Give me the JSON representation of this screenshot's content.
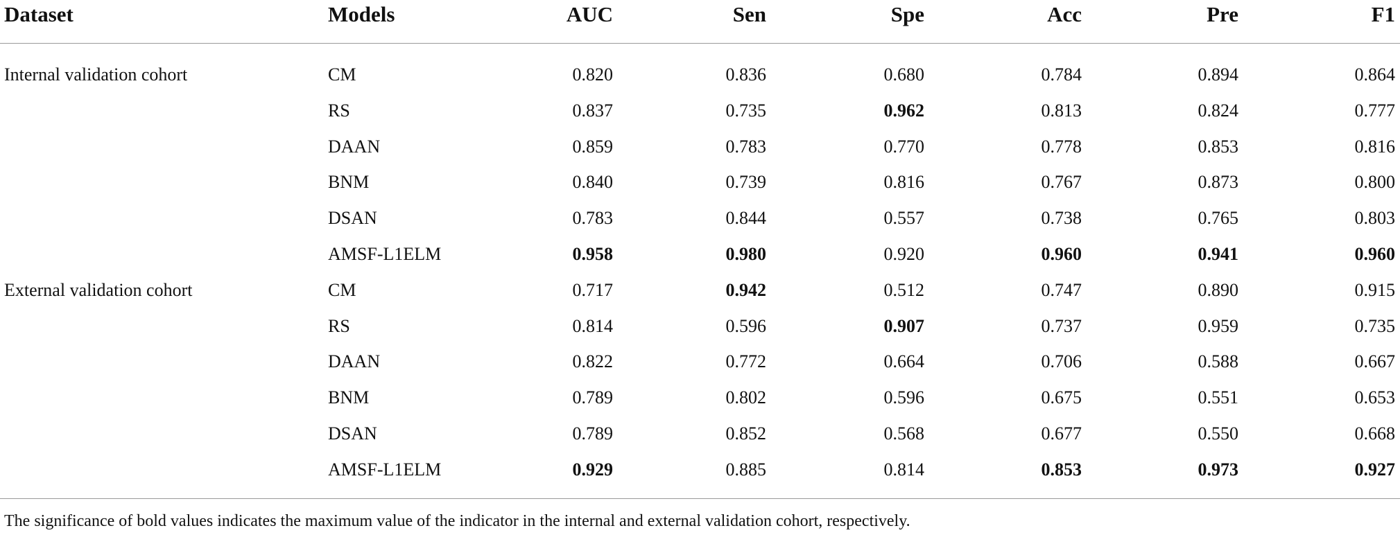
{
  "table": {
    "columns": [
      "Dataset",
      "Models",
      "AUC",
      "Sen",
      "Spe",
      "Acc",
      "Pre",
      "F1"
    ],
    "groups": [
      {
        "name": "Internal validation cohort",
        "rows": [
          {
            "model": "CM",
            "values": [
              "0.820",
              "0.836",
              "0.680",
              "0.784",
              "0.894",
              "0.864"
            ]
          },
          {
            "model": "RS",
            "values": [
              "0.837",
              "0.735",
              "0.962",
              "0.813",
              "0.824",
              "0.777"
            ],
            "bold": [
              2
            ]
          },
          {
            "model": "DAAN",
            "values": [
              "0.859",
              "0.783",
              "0.770",
              "0.778",
              "0.853",
              "0.816"
            ]
          },
          {
            "model": "BNM",
            "values": [
              "0.840",
              "0.739",
              "0.816",
              "0.767",
              "0.873",
              "0.800"
            ]
          },
          {
            "model": "DSAN",
            "values": [
              "0.783",
              "0.844",
              "0.557",
              "0.738",
              "0.765",
              "0.803"
            ]
          },
          {
            "model": "AMSF-L1ELM",
            "values": [
              "0.958",
              "0.980",
              "0.920",
              "0.960",
              "0.941",
              "0.960"
            ],
            "bold": [
              0,
              1,
              3,
              4,
              5
            ]
          }
        ]
      },
      {
        "name": "External validation cohort",
        "rows": [
          {
            "model": "CM",
            "values": [
              "0.717",
              "0.942",
              "0.512",
              "0.747",
              "0.890",
              "0.915"
            ],
            "bold": [
              1
            ]
          },
          {
            "model": "RS",
            "values": [
              "0.814",
              "0.596",
              "0.907",
              "0.737",
              "0.959",
              "0.735"
            ],
            "bold": [
              2
            ]
          },
          {
            "model": "DAAN",
            "values": [
              "0.822",
              "0.772",
              "0.664",
              "0.706",
              "0.588",
              "0.667"
            ]
          },
          {
            "model": "BNM",
            "values": [
              "0.789",
              "0.802",
              "0.596",
              "0.675",
              "0.551",
              "0.653"
            ]
          },
          {
            "model": "DSAN",
            "values": [
              "0.789",
              "0.852",
              "0.568",
              "0.677",
              "0.550",
              "0.668"
            ]
          },
          {
            "model": "AMSF-L1ELM",
            "values": [
              "0.929",
              "0.885",
              "0.814",
              "0.853",
              "0.973",
              "0.927"
            ],
            "bold": [
              0,
              3,
              4,
              5
            ]
          }
        ]
      }
    ],
    "footnote": "The significance of bold values indicates the maximum value of the indicator in the internal and external validation cohort, respectively."
  }
}
